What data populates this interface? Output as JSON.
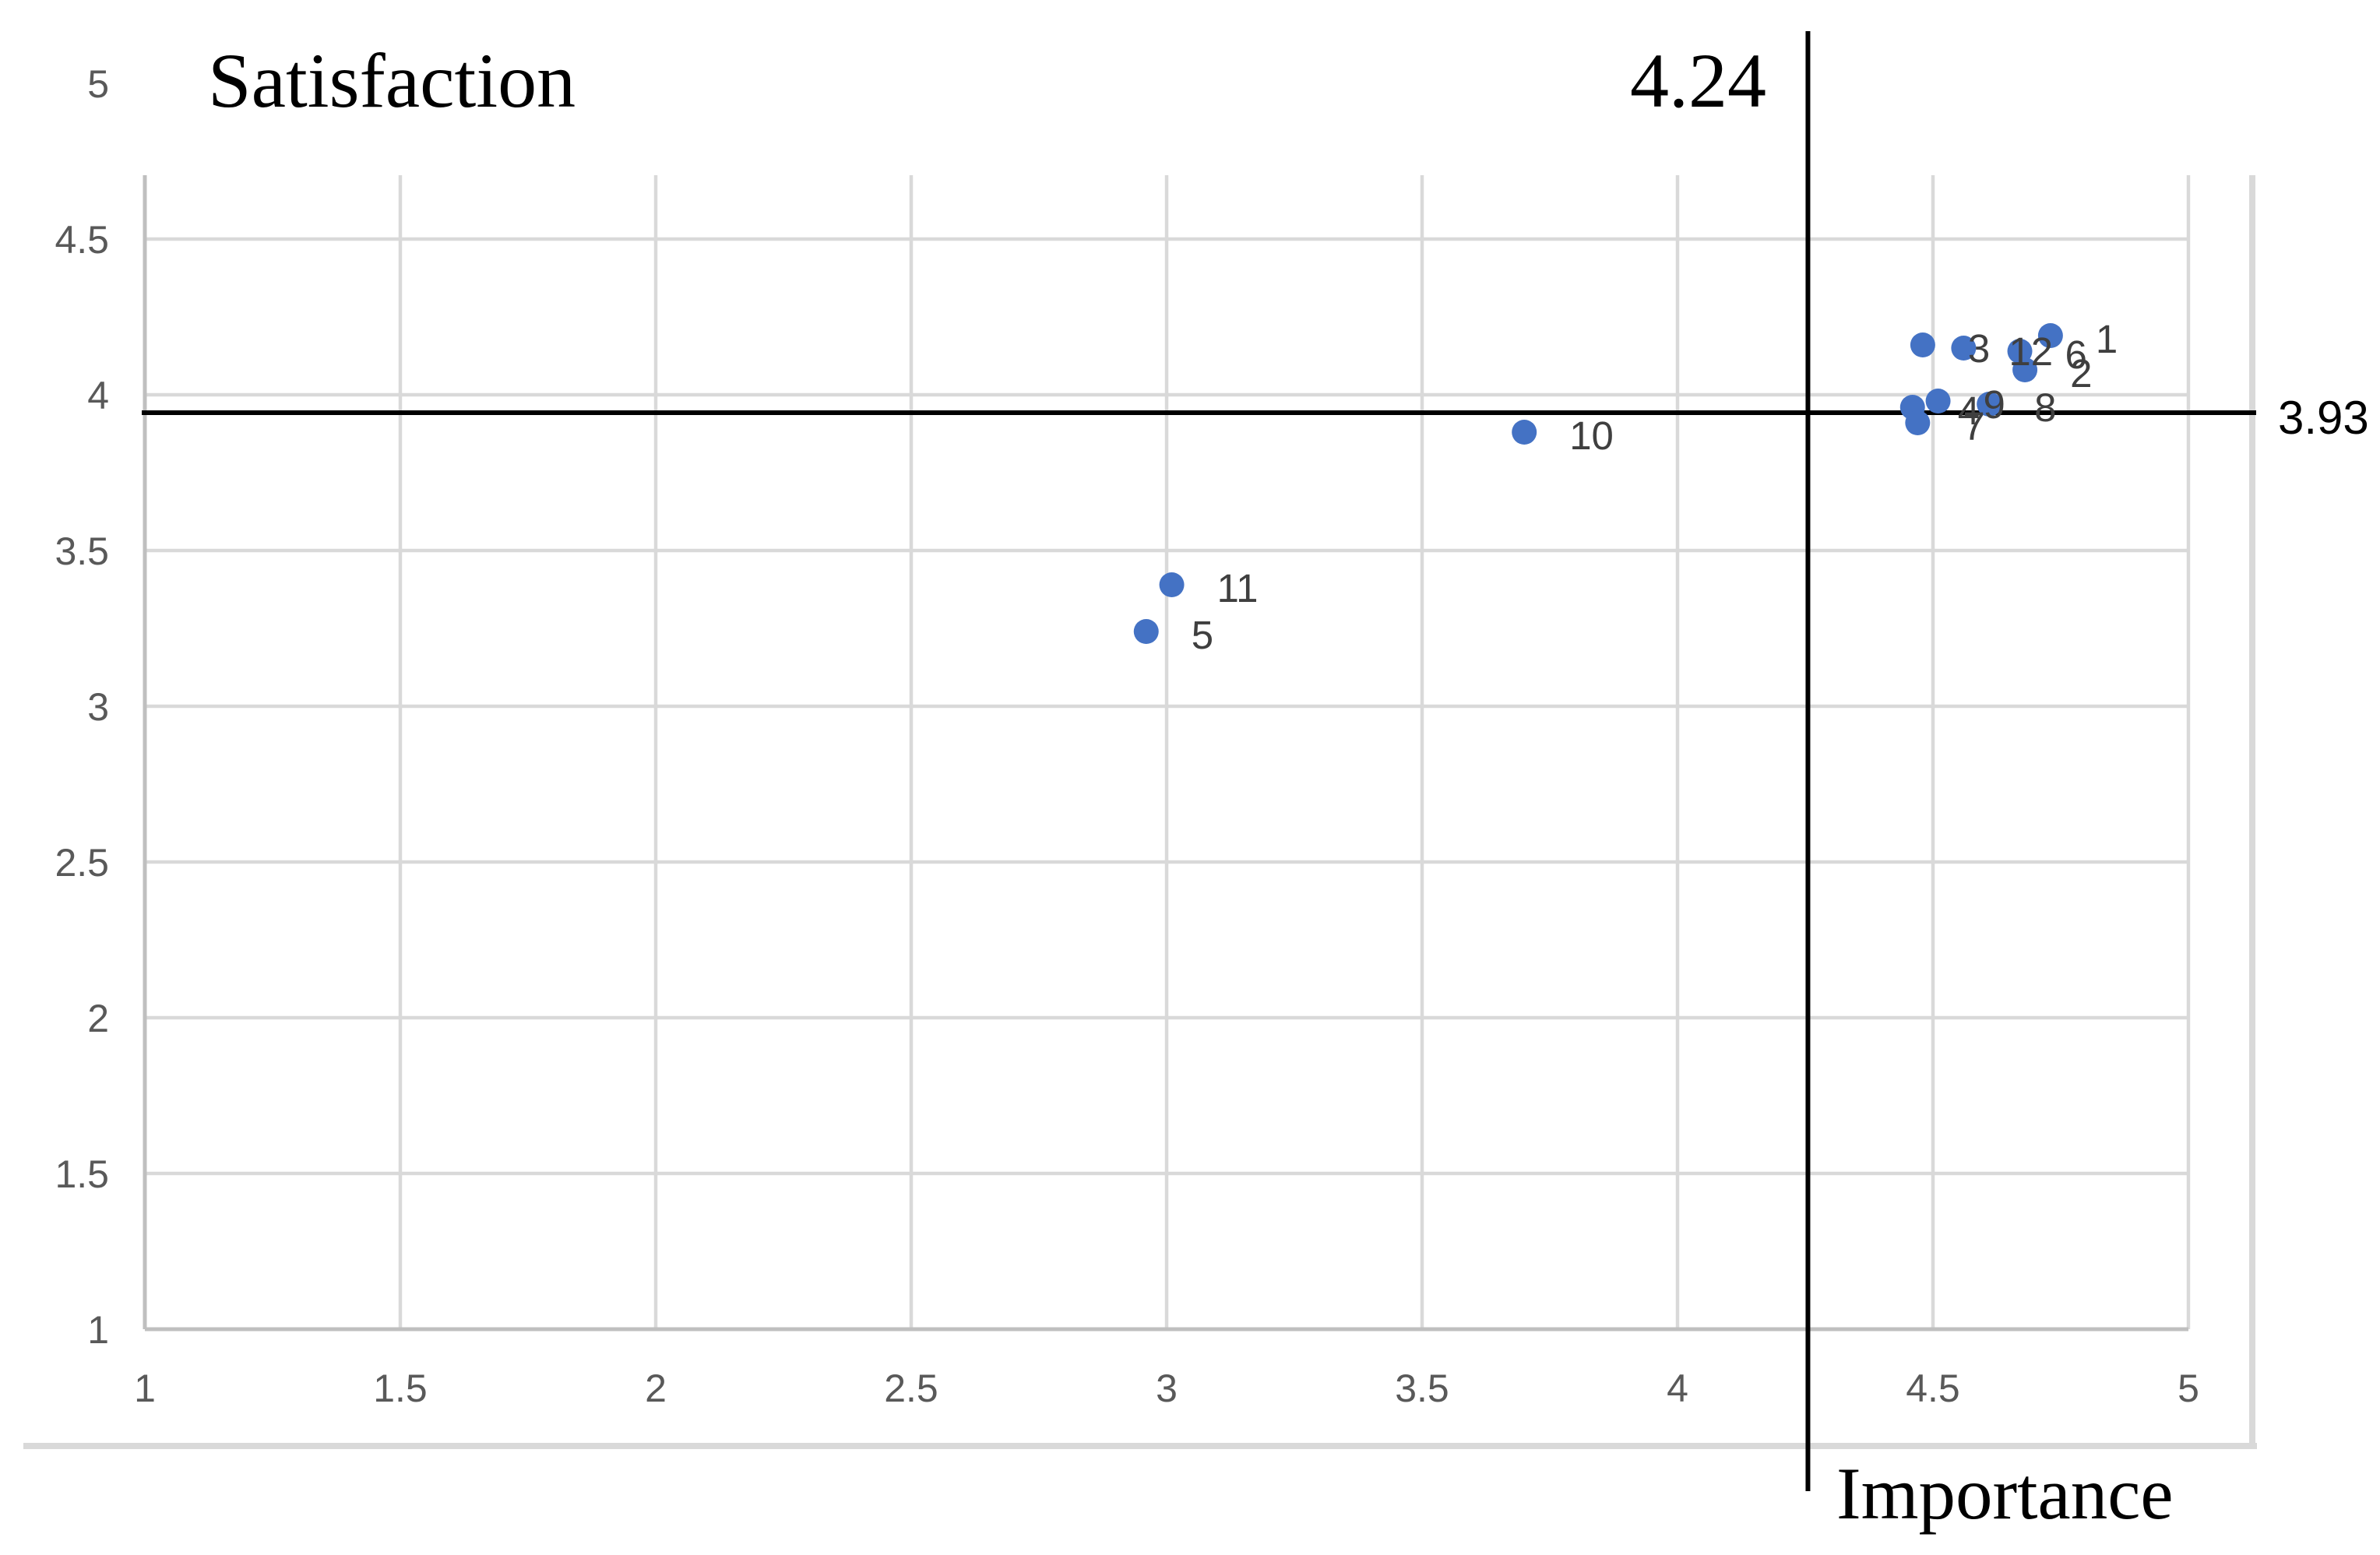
{
  "chart_data": {
    "type": "scatter",
    "y_axis_title": "Satisfaction",
    "x_axis_title": "Importance",
    "legend": "none",
    "grid": true,
    "xlim": [
      1,
      5.13
    ],
    "ylim": [
      0.63,
      4.71
    ],
    "x_ticks": [
      {
        "value": 1,
        "label": "1"
      },
      {
        "value": 1.5,
        "label": "1.5"
      },
      {
        "value": 2,
        "label": "2"
      },
      {
        "value": 2.5,
        "label": "2.5"
      },
      {
        "value": 3,
        "label": "3"
      },
      {
        "value": 3.5,
        "label": "3.5"
      },
      {
        "value": 4,
        "label": "4"
      },
      {
        "value": 4.5,
        "label": "4.5"
      },
      {
        "value": 5,
        "label": "5"
      }
    ],
    "y_ticks": [
      {
        "value": 1,
        "label": "1"
      },
      {
        "value": 1.5,
        "label": "1.5"
      },
      {
        "value": 2,
        "label": "2"
      },
      {
        "value": 2.5,
        "label": "2.5"
      },
      {
        "value": 3,
        "label": "3"
      },
      {
        "value": 3.5,
        "label": "3.5"
      },
      {
        "value": 4,
        "label": "4"
      },
      {
        "value": 4.5,
        "label": "4.5"
      },
      {
        "value": 5,
        "label": "5"
      }
    ],
    "points": [
      {
        "label": "1",
        "x": 4.73,
        "y": 4.19
      },
      {
        "label": "2",
        "x": 4.68,
        "y": 4.08
      },
      {
        "label": "3",
        "x": 4.48,
        "y": 4.16
      },
      {
        "label": "4",
        "x": 4.46,
        "y": 3.96
      },
      {
        "label": "5",
        "x": 2.96,
        "y": 3.24
      },
      {
        "label": "6",
        "x": 4.67,
        "y": 4.14
      },
      {
        "label": "7",
        "x": 4.47,
        "y": 3.91
      },
      {
        "label": "8",
        "x": 4.61,
        "y": 3.97
      },
      {
        "label": "9",
        "x": 4.51,
        "y": 3.98
      },
      {
        "label": "10",
        "x": 3.7,
        "y": 3.88
      },
      {
        "label": "11",
        "x": 3.01,
        "y": 3.39
      },
      {
        "label": "12",
        "x": 4.56,
        "y": 4.15
      }
    ],
    "reference_lines": {
      "vertical": {
        "value": 4.24,
        "label": "4.24"
      },
      "horizontal": {
        "value": 3.93,
        "label": "3.93"
      }
    },
    "colors": {
      "marker": "#4472C4",
      "gridline": "#D9D9D9",
      "axis_line": "#BFBFBF",
      "chart_border": "#D9D9D9",
      "tick_label": "#595959",
      "point_label": "#3F3F3F",
      "reference_line": "#000000",
      "title_text": "#000000",
      "background": "#FFFFFF"
    }
  }
}
